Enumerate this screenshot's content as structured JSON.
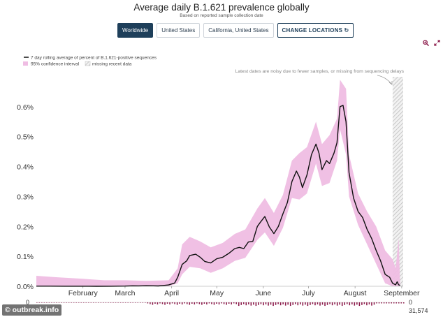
{
  "header": {
    "title": "Average daily B.1.621 prevalence globally",
    "subtitle": "Based on reported sample collection date"
  },
  "locations": {
    "buttons": [
      {
        "label": "Worldwide",
        "active": true
      },
      {
        "label": "United States",
        "active": false
      },
      {
        "label": "California, United States",
        "active": false
      }
    ],
    "change_label": "CHANGE LOCATIONS"
  },
  "toolbar": {
    "icons": [
      "zoom-icon",
      "expand-icon"
    ]
  },
  "watermark": "outbreak.info",
  "chart_data": {
    "type": "line",
    "x_unit": "date",
    "x_start": "2021-01-01",
    "x_end": "2021-09-02",
    "ylim": [
      0,
      0.7
    ],
    "yticks": [
      0,
      0.1,
      0.2,
      0.3,
      0.4,
      0.5,
      0.6
    ],
    "ytick_labels": [
      "0.0%",
      "0.1%",
      "0.2%",
      "0.3%",
      "0.4%",
      "0.5%",
      "0.6%"
    ],
    "xtick_labels": [
      "February",
      "March",
      "April",
      "May",
      "June",
      "July",
      "August",
      "September"
    ],
    "xtick_dates": [
      "2021-02-01",
      "2021-03-01",
      "2021-04-01",
      "2021-05-01",
      "2021-06-01",
      "2021-07-01",
      "2021-08-01",
      "2021-09-01"
    ],
    "legend": {
      "line_label": "7 day rolling average of percent of B.1.621-positive sequences",
      "ci_label": "95% confidence interval",
      "missing_label": "missing recent data",
      "line_color": "#111111",
      "ci_color": "#efbde3",
      "missing_color": "#bbbbbb"
    },
    "annotation": "Latest dates are noisy due to fewer samples, or missing from sequencing delays",
    "missing_start": "2021-08-26",
    "series": [
      {
        "points": [
          [
            "2021-01-01",
            0.0004
          ],
          [
            "2021-01-10",
            0.0004
          ],
          [
            "2021-01-20",
            0.0002
          ],
          [
            "2021-02-01",
            0.0002
          ],
          [
            "2021-02-10",
            0.0001
          ],
          [
            "2021-02-20",
            0.0002
          ],
          [
            "2021-03-01",
            0.0006
          ],
          [
            "2021-03-06",
            0.0017
          ],
          [
            "2021-03-10",
            0.0014
          ],
          [
            "2021-03-15",
            0.0018
          ],
          [
            "2021-03-20",
            0.0016
          ],
          [
            "2021-03-23",
            0.0012
          ],
          [
            "2021-03-26",
            0.0025
          ],
          [
            "2021-03-30",
            0.0045
          ],
          [
            "2021-04-03",
            0.011
          ],
          [
            "2021-04-05",
            0.03
          ],
          [
            "2021-04-08",
            0.073
          ],
          [
            "2021-04-11",
            0.085
          ],
          [
            "2021-04-13",
            0.103
          ],
          [
            "2021-04-17",
            0.107
          ],
          [
            "2021-04-20",
            0.097
          ],
          [
            "2021-04-23",
            0.083
          ],
          [
            "2021-04-27",
            0.078
          ],
          [
            "2021-05-01",
            0.092
          ],
          [
            "2021-05-05",
            0.097
          ],
          [
            "2021-05-09",
            0.11
          ],
          [
            "2021-05-13",
            0.126
          ],
          [
            "2021-05-16",
            0.13
          ],
          [
            "2021-05-19",
            0.126
          ],
          [
            "2021-05-22",
            0.148
          ],
          [
            "2021-05-25",
            0.15
          ],
          [
            "2021-05-28",
            0.2
          ],
          [
            "2021-05-30",
            0.214
          ],
          [
            "2021-06-02",
            0.233
          ],
          [
            "2021-06-05",
            0.198
          ],
          [
            "2021-06-08",
            0.176
          ],
          [
            "2021-06-11",
            0.2
          ],
          [
            "2021-06-14",
            0.242
          ],
          [
            "2021-06-17",
            0.28
          ],
          [
            "2021-06-20",
            0.35
          ],
          [
            "2021-06-23",
            0.385
          ],
          [
            "2021-06-25",
            0.365
          ],
          [
            "2021-06-27",
            0.33
          ],
          [
            "2021-06-30",
            0.372
          ],
          [
            "2021-07-03",
            0.44
          ],
          [
            "2021-07-06",
            0.475
          ],
          [
            "2021-07-08",
            0.445
          ],
          [
            "2021-07-10",
            0.39
          ],
          [
            "2021-07-13",
            0.42
          ],
          [
            "2021-07-15",
            0.41
          ],
          [
            "2021-07-18",
            0.445
          ],
          [
            "2021-07-20",
            0.48
          ],
          [
            "2021-07-22",
            0.6
          ],
          [
            "2021-07-24",
            0.605
          ],
          [
            "2021-07-26",
            0.55
          ],
          [
            "2021-07-28",
            0.38
          ],
          [
            "2021-07-31",
            0.295
          ],
          [
            "2021-08-03",
            0.25
          ],
          [
            "2021-08-06",
            0.23
          ],
          [
            "2021-08-09",
            0.19
          ],
          [
            "2021-08-12",
            0.16
          ],
          [
            "2021-08-15",
            0.12
          ],
          [
            "2021-08-18",
            0.085
          ],
          [
            "2021-08-21",
            0.04
          ],
          [
            "2021-08-24",
            0.03
          ],
          [
            "2021-08-26",
            0.01
          ],
          [
            "2021-08-28",
            0.005
          ],
          [
            "2021-08-29",
            0.015
          ],
          [
            "2021-08-30",
            0.005
          ],
          [
            "2021-08-31",
            0.003
          ]
        ],
        "ci_upper": [
          [
            "2021-01-01",
            0.035
          ],
          [
            "2021-01-15",
            0.03
          ],
          [
            "2021-02-01",
            0.025
          ],
          [
            "2021-02-15",
            0.02
          ],
          [
            "2021-03-01",
            0.02
          ],
          [
            "2021-03-15",
            0.018
          ],
          [
            "2021-03-30",
            0.02
          ],
          [
            "2021-04-05",
            0.06
          ],
          [
            "2021-04-08",
            0.14
          ],
          [
            "2021-04-13",
            0.165
          ],
          [
            "2021-04-20",
            0.15
          ],
          [
            "2021-04-27",
            0.13
          ],
          [
            "2021-05-05",
            0.145
          ],
          [
            "2021-05-13",
            0.175
          ],
          [
            "2021-05-20",
            0.19
          ],
          [
            "2021-05-28",
            0.26
          ],
          [
            "2021-06-02",
            0.295
          ],
          [
            "2021-06-08",
            0.245
          ],
          [
            "2021-06-14",
            0.305
          ],
          [
            "2021-06-20",
            0.42
          ],
          [
            "2021-06-25",
            0.445
          ],
          [
            "2021-06-30",
            0.465
          ],
          [
            "2021-07-06",
            0.55
          ],
          [
            "2021-07-10",
            0.475
          ],
          [
            "2021-07-15",
            0.505
          ],
          [
            "2021-07-20",
            0.56
          ],
          [
            "2021-07-22",
            0.69
          ],
          [
            "2021-07-26",
            0.66
          ],
          [
            "2021-07-28",
            0.44
          ],
          [
            "2021-08-03",
            0.31
          ],
          [
            "2021-08-09",
            0.25
          ],
          [
            "2021-08-15",
            0.2
          ],
          [
            "2021-08-21",
            0.12
          ],
          [
            "2021-08-26",
            0.09
          ],
          [
            "2021-08-28",
            0.06
          ],
          [
            "2021-08-30",
            0.16
          ]
        ],
        "ci_lower": [
          [
            "2021-01-01",
            0
          ],
          [
            "2021-03-30",
            0
          ],
          [
            "2021-04-05",
            0.01
          ],
          [
            "2021-04-08",
            0.04
          ],
          [
            "2021-04-13",
            0.065
          ],
          [
            "2021-04-20",
            0.06
          ],
          [
            "2021-04-27",
            0.045
          ],
          [
            "2021-05-05",
            0.06
          ],
          [
            "2021-05-13",
            0.085
          ],
          [
            "2021-05-20",
            0.095
          ],
          [
            "2021-05-28",
            0.155
          ],
          [
            "2021-06-02",
            0.18
          ],
          [
            "2021-06-08",
            0.135
          ],
          [
            "2021-06-14",
            0.195
          ],
          [
            "2021-06-20",
            0.295
          ],
          [
            "2021-06-25",
            0.29
          ],
          [
            "2021-06-30",
            0.31
          ],
          [
            "2021-07-06",
            0.41
          ],
          [
            "2021-07-10",
            0.335
          ],
          [
            "2021-07-15",
            0.345
          ],
          [
            "2021-07-20",
            0.42
          ],
          [
            "2021-07-22",
            0.525
          ],
          [
            "2021-07-26",
            0.44
          ],
          [
            "2021-07-28",
            0.3
          ],
          [
            "2021-08-03",
            0.205
          ],
          [
            "2021-08-09",
            0.14
          ],
          [
            "2021-08-15",
            0.075
          ],
          [
            "2021-08-21",
            0.01
          ],
          [
            "2021-08-26",
            0
          ],
          [
            "2021-08-31",
            0
          ]
        ]
      }
    ],
    "sample_counts": {
      "min_label": "0",
      "max_label": "31,574"
    }
  }
}
